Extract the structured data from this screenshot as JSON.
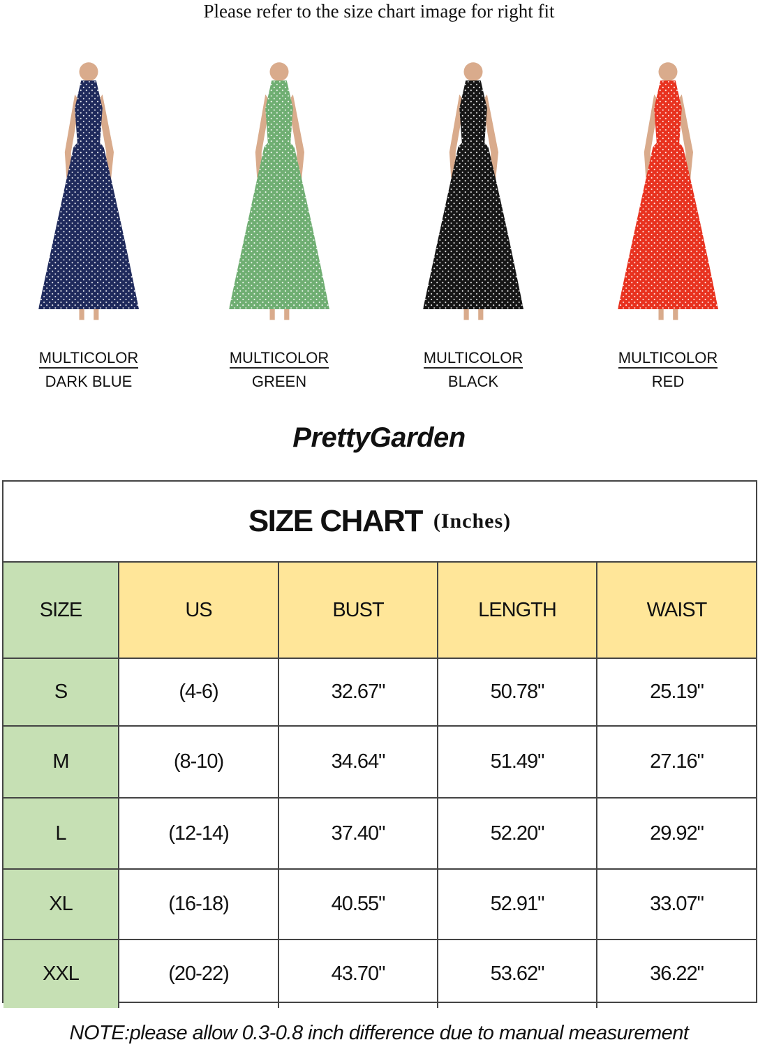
{
  "header_note": "Please refer to the size chart image for right fit",
  "products": [
    {
      "line1": "MULTICOLOR",
      "line2": "DARK BLUE",
      "color": "#1f2a5c"
    },
    {
      "line1": "MULTICOLOR",
      "line2": "GREEN",
      "color": "#6fae72"
    },
    {
      "line1": "MULTICOLOR",
      "line2": "BLACK",
      "color": "#161616"
    },
    {
      "line1": "MULTICOLOR",
      "line2": "RED",
      "color": "#e8321f"
    }
  ],
  "brand": "PrettyGarden",
  "size_chart": {
    "title": "SIZE CHART",
    "unit": "(Inches)",
    "columns": [
      "SIZE",
      "US",
      "BUST",
      "LENGTH",
      "WAIST"
    ],
    "rows": [
      [
        "S",
        "(4-6)",
        "32.67\"",
        "50.78\"",
        "25.19\""
      ],
      [
        "M",
        "(8-10)",
        "34.64\"",
        "51.49\"",
        "27.16\""
      ],
      [
        "L",
        "(12-14)",
        "37.40\"",
        "52.20\"",
        "29.92\""
      ],
      [
        "XL",
        "(16-18)",
        "40.55\"",
        "52.91\"",
        "33.07\""
      ],
      [
        "XXL",
        "(20-22)",
        "43.70\"",
        "53.62\"",
        "36.22\""
      ]
    ],
    "colors": {
      "size_column": "#c6e0b4",
      "header": "#ffe699",
      "border": "#444444"
    }
  },
  "footnote": "NOTE:please allow 0.3-0.8 inch difference due to manual measurement"
}
